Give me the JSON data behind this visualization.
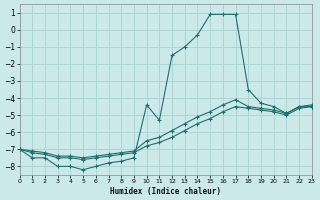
{
  "xlabel": "Humidex (Indice chaleur)",
  "bg_color": "#cce9e9",
  "grid_color": "#aed4d4",
  "line_color": "#1e6e6e",
  "xlim": [
    0,
    23
  ],
  "ylim": [
    -8.5,
    1.5
  ],
  "xticks": [
    0,
    1,
    2,
    3,
    4,
    5,
    6,
    7,
    8,
    9,
    10,
    11,
    12,
    13,
    14,
    15,
    16,
    17,
    18,
    19,
    20,
    21,
    22,
    23
  ],
  "yticks": [
    1,
    0,
    -1,
    -2,
    -3,
    -4,
    -5,
    -6,
    -7,
    -8
  ],
  "line1_x": [
    0,
    1,
    2,
    3,
    4,
    5,
    6,
    7,
    8,
    9,
    10,
    11,
    12,
    13,
    14,
    15,
    16,
    17,
    18,
    19,
    20,
    21,
    22,
    23
  ],
  "line1_y": [
    -7.0,
    -7.5,
    -7.5,
    -8.0,
    -8.0,
    -8.2,
    -8.0,
    -7.8,
    -7.7,
    -7.5,
    -4.4,
    -5.3,
    -1.5,
    -1.0,
    -0.3,
    0.9,
    0.9,
    0.9,
    -3.5,
    -4.3,
    -4.5,
    -4.9,
    -4.5,
    -4.5
  ],
  "line2_x": [
    0,
    1,
    2,
    3,
    4,
    5,
    6,
    7,
    8,
    9,
    10,
    11,
    12,
    13,
    14,
    15,
    16,
    17,
    18,
    19,
    20,
    21,
    22,
    23
  ],
  "line2_y": [
    -7.0,
    -7.2,
    -7.3,
    -7.5,
    -7.5,
    -7.6,
    -7.5,
    -7.4,
    -7.3,
    -7.2,
    -6.8,
    -6.6,
    -6.3,
    -5.9,
    -5.5,
    -5.2,
    -4.8,
    -4.5,
    -4.6,
    -4.7,
    -4.8,
    -5.0,
    -4.6,
    -4.5
  ],
  "line3_x": [
    0,
    1,
    2,
    3,
    4,
    5,
    6,
    7,
    8,
    9,
    10,
    11,
    12,
    13,
    14,
    15,
    16,
    17,
    18,
    19,
    20,
    21,
    22,
    23
  ],
  "line3_y": [
    -7.0,
    -7.1,
    -7.2,
    -7.4,
    -7.4,
    -7.5,
    -7.4,
    -7.3,
    -7.2,
    -7.1,
    -6.5,
    -6.3,
    -5.9,
    -5.5,
    -5.1,
    -4.8,
    -4.4,
    -4.1,
    -4.5,
    -4.6,
    -4.7,
    -4.9,
    -4.5,
    -4.4
  ]
}
